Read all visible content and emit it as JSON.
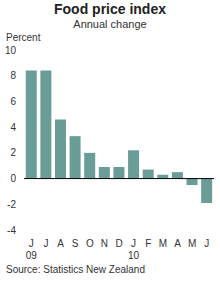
{
  "chart_data": {
    "type": "bar",
    "title": "Food price index",
    "subtitle": "Annual change",
    "y_label": "Percent",
    "source": "Source: Statistics New Zealand",
    "categories": [
      "J",
      "J",
      "A",
      "S",
      "O",
      "N",
      "D",
      "J",
      "F",
      "M",
      "A",
      "M",
      "J"
    ],
    "year_labels": [
      "09",
      null,
      null,
      null,
      null,
      null,
      null,
      "10",
      null,
      null,
      null,
      null,
      null
    ],
    "values": [
      8.4,
      8.4,
      4.6,
      3.3,
      2.0,
      0.9,
      0.9,
      2.2,
      0.7,
      0.3,
      0.5,
      -0.5,
      -1.9
    ],
    "color": "#6a9c98",
    "ylim": [
      -4,
      10
    ],
    "yticks": [
      -4,
      -2,
      0,
      2,
      4,
      6,
      8,
      10
    ],
    "grid": false
  }
}
